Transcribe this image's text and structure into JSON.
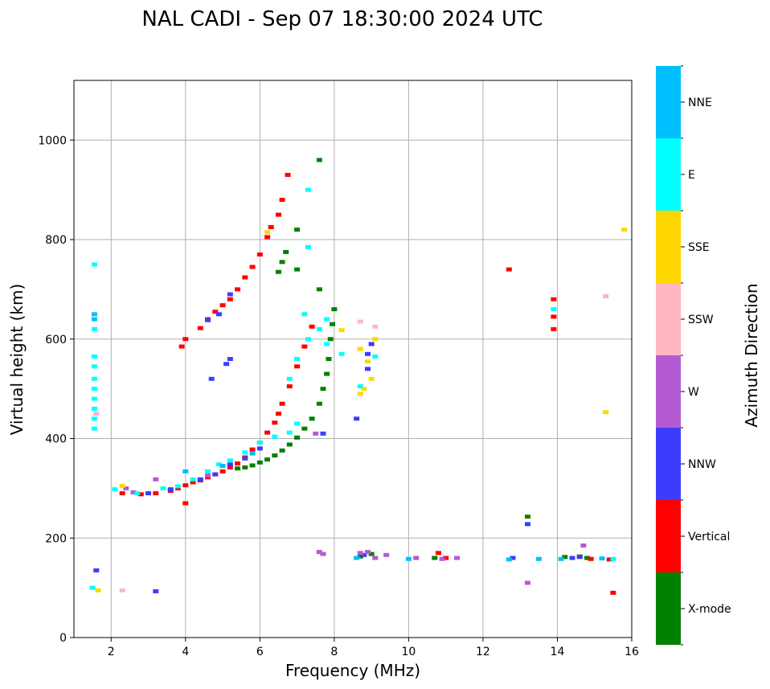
{
  "chart_data": {
    "type": "scatter",
    "title": "NAL CADI - Sep 07 18:30:00 2024 UTC",
    "xlabel": "Frequency (MHz)",
    "ylabel": "Virtual height (km)",
    "xlim": [
      1,
      16
    ],
    "ylim": [
      0,
      1120
    ],
    "xticks": [
      2,
      4,
      6,
      8,
      10,
      12,
      14,
      16
    ],
    "yticks": [
      0,
      200,
      400,
      600,
      800,
      1000
    ],
    "grid": true,
    "colorbar": {
      "label": "Azimuth Direction",
      "categories": [
        {
          "name": "X-mode",
          "color": "#008000"
        },
        {
          "name": "Vertical",
          "color": "#ff0000"
        },
        {
          "name": "NNW",
          "color": "#3c3cff"
        },
        {
          "name": "W",
          "color": "#b45ad2"
        },
        {
          "name": "SSW",
          "color": "#ffb6c1"
        },
        {
          "name": "SSE",
          "color": "#ffd700"
        },
        {
          "name": "E",
          "color": "#00ffff"
        },
        {
          "name": "NNE",
          "color": "#00bfff"
        }
      ]
    },
    "series": [
      {
        "name": "X-mode",
        "points": [
          [
            5.4,
            340
          ],
          [
            5.6,
            342
          ],
          [
            5.8,
            346
          ],
          [
            6.0,
            352
          ],
          [
            6.2,
            358
          ],
          [
            6.4,
            366
          ],
          [
            6.6,
            376
          ],
          [
            6.8,
            388
          ],
          [
            7.0,
            402
          ],
          [
            7.2,
            420
          ],
          [
            7.4,
            440
          ],
          [
            7.6,
            470
          ],
          [
            7.7,
            500
          ],
          [
            7.8,
            530
          ],
          [
            7.85,
            560
          ],
          [
            7.9,
            600
          ],
          [
            7.95,
            630
          ],
          [
            8.0,
            660
          ],
          [
            7.6,
            700
          ],
          [
            7.0,
            740
          ],
          [
            6.5,
            735
          ],
          [
            6.6,
            755
          ],
          [
            6.7,
            775
          ],
          [
            7.0,
            820
          ],
          [
            7.6,
            960
          ],
          [
            8.7,
            163
          ],
          [
            9.0,
            168
          ],
          [
            10.7,
            160
          ],
          [
            13.2,
            243
          ],
          [
            14.2,
            162
          ],
          [
            14.6,
            163
          ],
          [
            14.8,
            160
          ]
        ]
      },
      {
        "name": "Vertical",
        "points": [
          [
            2.3,
            290
          ],
          [
            2.8,
            288
          ],
          [
            3.2,
            290
          ],
          [
            3.6,
            295
          ],
          [
            3.8,
            300
          ],
          [
            4.0,
            306
          ],
          [
            4.2,
            312
          ],
          [
            4.4,
            316
          ],
          [
            4.6,
            322
          ],
          [
            4.8,
            328
          ],
          [
            5.0,
            334
          ],
          [
            5.2,
            342
          ],
          [
            5.4,
            350
          ],
          [
            5.6,
            362
          ],
          [
            5.8,
            378
          ],
          [
            6.0,
            392
          ],
          [
            6.2,
            412
          ],
          [
            6.4,
            432
          ],
          [
            6.5,
            450
          ],
          [
            6.6,
            470
          ],
          [
            6.8,
            505
          ],
          [
            7.0,
            545
          ],
          [
            7.2,
            585
          ],
          [
            7.4,
            625
          ],
          [
            3.9,
            585
          ],
          [
            4.0,
            600
          ],
          [
            4.4,
            622
          ],
          [
            4.6,
            640
          ],
          [
            4.8,
            655
          ],
          [
            5.0,
            668
          ],
          [
            5.2,
            680
          ],
          [
            5.4,
            700
          ],
          [
            5.6,
            724
          ],
          [
            5.8,
            745
          ],
          [
            6.0,
            770
          ],
          [
            6.2,
            805
          ],
          [
            6.3,
            825
          ],
          [
            6.5,
            850
          ],
          [
            6.6,
            880
          ],
          [
            6.75,
            930
          ],
          [
            4.0,
            270
          ],
          [
            10.8,
            170
          ],
          [
            11.0,
            160
          ],
          [
            12.7,
            740
          ],
          [
            13.9,
            680
          ],
          [
            13.9,
            620
          ],
          [
            13.9,
            645
          ],
          [
            14.9,
            158
          ],
          [
            15.4,
            157
          ],
          [
            15.5,
            90
          ]
        ]
      },
      {
        "name": "NNW",
        "points": [
          [
            3.0,
            290
          ],
          [
            3.6,
            298
          ],
          [
            4.4,
            318
          ],
          [
            4.8,
            328
          ],
          [
            5.2,
            348
          ],
          [
            5.6,
            360
          ],
          [
            6.0,
            380
          ],
          [
            4.6,
            638
          ],
          [
            4.9,
            650
          ],
          [
            5.2,
            690
          ],
          [
            5.1,
            550
          ],
          [
            5.2,
            560
          ],
          [
            4.7,
            520
          ],
          [
            8.9,
            570
          ],
          [
            9.0,
            590
          ],
          [
            8.9,
            540
          ],
          [
            8.6,
            440
          ],
          [
            7.7,
            410
          ],
          [
            8.8,
            166
          ],
          [
            12.8,
            160
          ],
          [
            13.2,
            228
          ],
          [
            14.4,
            160
          ],
          [
            14.6,
            162
          ],
          [
            1.6,
            135
          ],
          [
            3.2,
            93
          ]
        ]
      },
      {
        "name": "W",
        "points": [
          [
            2.4,
            300
          ],
          [
            3.2,
            318
          ],
          [
            2.6,
            292
          ],
          [
            4.6,
            326
          ],
          [
            7.6,
            172
          ],
          [
            7.7,
            168
          ],
          [
            8.7,
            170
          ],
          [
            8.9,
            172
          ],
          [
            9.1,
            160
          ],
          [
            9.4,
            166
          ],
          [
            10.2,
            160
          ],
          [
            10.9,
            158
          ],
          [
            11.3,
            160
          ],
          [
            13.2,
            110
          ],
          [
            14.7,
            185
          ],
          [
            7.5,
            410
          ]
        ]
      },
      {
        "name": "SSW",
        "points": [
          [
            1.6,
            450
          ],
          [
            2.3,
            95
          ],
          [
            8.7,
            635
          ],
          [
            9.1,
            625
          ],
          [
            15.3,
            686
          ]
        ]
      },
      {
        "name": "SSE",
        "points": [
          [
            2.3,
            305
          ],
          [
            8.2,
            618
          ],
          [
            8.7,
            580
          ],
          [
            8.9,
            555
          ],
          [
            9.0,
            520
          ],
          [
            8.8,
            500
          ],
          [
            9.1,
            600
          ],
          [
            8.7,
            490
          ],
          [
            6.2,
            815
          ],
          [
            1.65,
            95
          ],
          [
            15.3,
            453
          ],
          [
            15.8,
            820
          ]
        ]
      },
      {
        "name": "E",
        "points": [
          [
            1.55,
            420
          ],
          [
            1.55,
            440
          ],
          [
            1.55,
            460
          ],
          [
            1.55,
            480
          ],
          [
            1.55,
            500
          ],
          [
            1.55,
            520
          ],
          [
            1.55,
            545
          ],
          [
            1.55,
            565
          ],
          [
            1.55,
            620
          ],
          [
            1.55,
            750
          ],
          [
            2.1,
            298
          ],
          [
            2.7,
            290
          ],
          [
            3.4,
            300
          ],
          [
            3.8,
            304
          ],
          [
            4.2,
            318
          ],
          [
            4.6,
            334
          ],
          [
            4.9,
            348
          ],
          [
            5.2,
            356
          ],
          [
            5.6,
            372
          ],
          [
            6.0,
            392
          ],
          [
            6.4,
            404
          ],
          [
            6.8,
            412
          ],
          [
            7.0,
            430
          ],
          [
            6.8,
            520
          ],
          [
            7.0,
            560
          ],
          [
            7.3,
            600
          ],
          [
            7.6,
            620
          ],
          [
            7.2,
            650
          ],
          [
            7.8,
            640
          ],
          [
            7.8,
            590
          ],
          [
            8.2,
            570
          ],
          [
            7.3,
            785
          ],
          [
            8.7,
            505
          ],
          [
            9.1,
            565
          ],
          [
            13.9,
            660
          ],
          [
            1.5,
            100
          ],
          [
            15.5,
            158
          ],
          [
            7.3,
            900
          ]
        ]
      },
      {
        "name": "NNE",
        "points": [
          [
            1.55,
            640
          ],
          [
            1.55,
            650
          ],
          [
            4.0,
            334
          ],
          [
            5.0,
            345
          ],
          [
            5.8,
            370
          ],
          [
            8.6,
            160
          ],
          [
            10.0,
            158
          ],
          [
            12.7,
            157
          ],
          [
            13.5,
            158
          ],
          [
            14.1,
            158
          ],
          [
            15.2,
            159
          ]
        ]
      }
    ]
  }
}
